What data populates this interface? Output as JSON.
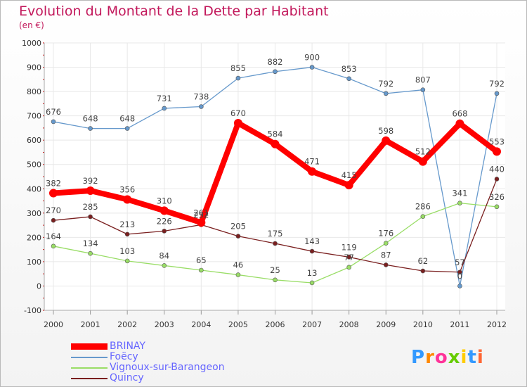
{
  "title": "Evolution du Montant de la Dette par Habitant",
  "unit_label": "(en €)",
  "watermark": "Proxiti",
  "colors": {
    "title": "#c2185b",
    "grid": "#e8e8e8",
    "axis_text": "#333333",
    "legend_text": "#6666ff",
    "tick_marks": "#cc0000"
  },
  "chart_data": {
    "type": "line",
    "title": "Evolution du Montant de la Dette par Habitant",
    "ylabel": "(en €)",
    "xlabel": "",
    "x": [
      "2000",
      "2001",
      "2002",
      "2003",
      "2004",
      "2005",
      "2006",
      "2007",
      "2008",
      "2009",
      "2010",
      "2011",
      "2012"
    ],
    "yticks": [
      -100,
      0,
      100,
      200,
      300,
      400,
      500,
      600,
      700,
      800,
      900,
      1000
    ],
    "ylim": [
      -100,
      1000
    ],
    "grid": true,
    "legend_position": "bottom-left",
    "series": [
      {
        "name": "BRINAY",
        "color": "#ff0000",
        "values": [
          382,
          392,
          356,
          310,
          261,
          670,
          584,
          471,
          415,
          598,
          512,
          668,
          553
        ],
        "labels": [
          "382",
          "392",
          "356",
          "310",
          "261",
          "670",
          "584",
          "471",
          "415",
          "598",
          "512",
          "668",
          "553"
        ]
      },
      {
        "name": "Foëcy",
        "color": "#6699cc",
        "values": [
          676,
          648,
          648,
          731,
          738,
          855,
          882,
          900,
          853,
          792,
          807,
          0,
          792
        ],
        "labels": [
          "676",
          "648",
          "648",
          "731",
          "738",
          "855",
          "882",
          "900",
          "853",
          "792",
          "807",
          "0",
          "792"
        ]
      },
      {
        "name": "Vignoux-sur-Barangeon",
        "color": "#99dd66",
        "values": [
          164,
          134,
          103,
          84,
          65,
          46,
          25,
          13,
          77,
          176,
          286,
          341,
          326
        ],
        "labels": [
          "164",
          "134",
          "103",
          "84",
          "65",
          "46",
          "25",
          "13",
          "77",
          "176",
          "286",
          "341",
          "326"
        ]
      },
      {
        "name": "Quincy",
        "color": "#7a1f1f",
        "values": [
          270,
          285,
          213,
          226,
          252,
          205,
          175,
          143,
          119,
          87,
          62,
          57,
          440
        ],
        "labels": [
          "270",
          "285",
          "213",
          "226",
          "252",
          "205",
          "175",
          "143",
          "119",
          "87",
          "62",
          "57",
          "440"
        ]
      }
    ]
  }
}
